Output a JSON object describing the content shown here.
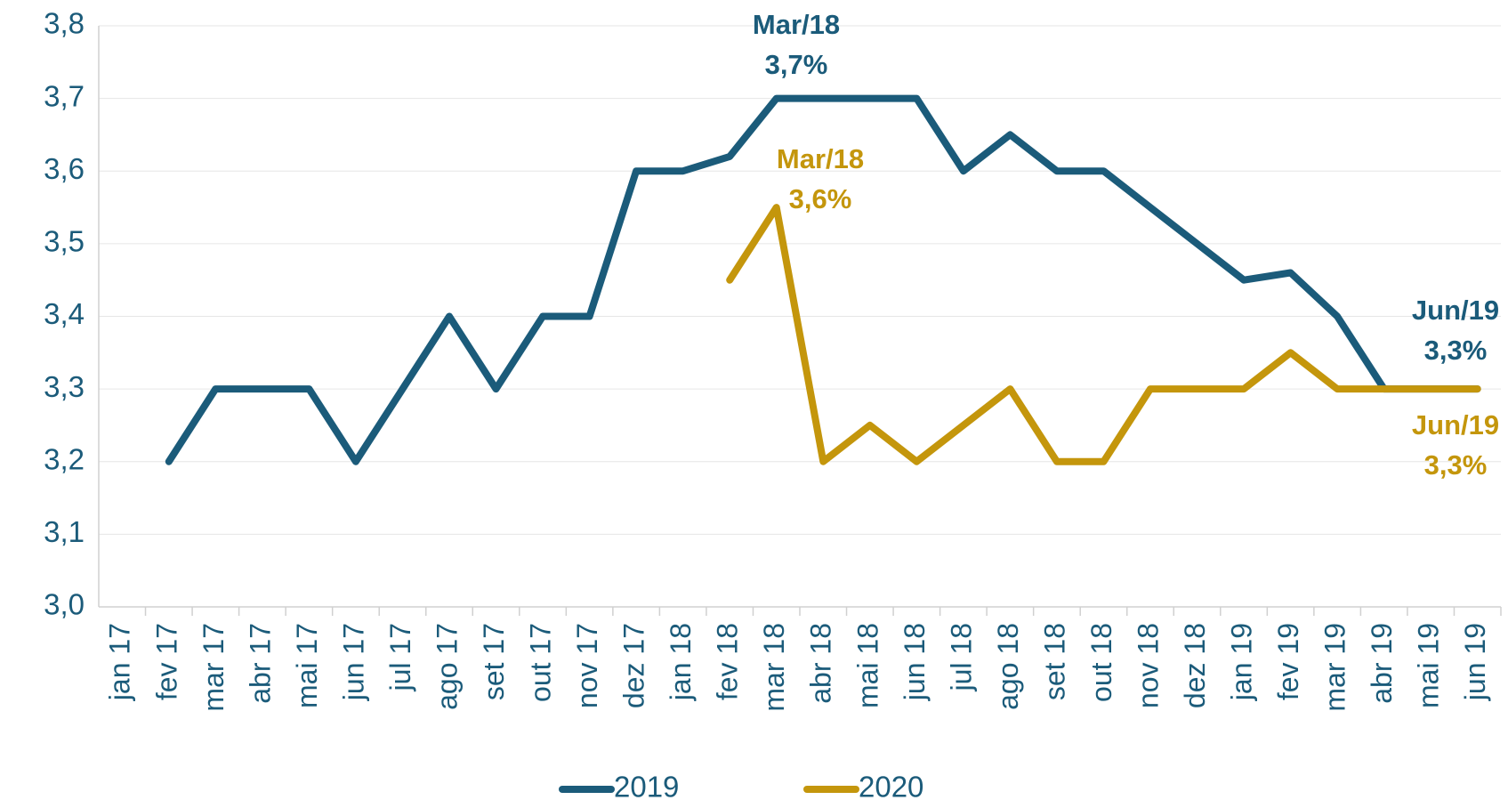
{
  "chart_data": {
    "type": "line",
    "categories": [
      "jan 17",
      "fev 17",
      "mar 17",
      "abr 17",
      "mai 17",
      "jun 17",
      "jul 17",
      "ago 17",
      "set 17",
      "out 17",
      "nov 17",
      "dez 17",
      "jan 18",
      "fev 18",
      "mar 18",
      "abr 18",
      "mai 18",
      "jun 18",
      "jul 18",
      "ago 18",
      "set 18",
      "out 18",
      "nov 18",
      "dez 18",
      "jan 19",
      "fev 19",
      "mar 19",
      "abr 19",
      "mai 19",
      "jun 19"
    ],
    "series": [
      {
        "name": "2019",
        "color": "#1b5b7a",
        "values": [
          null,
          3.2,
          3.3,
          3.3,
          3.3,
          3.2,
          3.3,
          3.4,
          3.3,
          3.4,
          3.4,
          3.6,
          3.6,
          3.62,
          3.7,
          3.7,
          3.7,
          3.7,
          3.6,
          3.65,
          3.6,
          3.6,
          3.55,
          3.5,
          3.45,
          3.46,
          3.4,
          3.3,
          3.3,
          3.3
        ]
      },
      {
        "name": "2020",
        "color": "#c4960c",
        "values": [
          null,
          null,
          null,
          null,
          null,
          null,
          null,
          null,
          null,
          null,
          null,
          null,
          null,
          3.45,
          3.55,
          3.2,
          3.25,
          3.2,
          3.25,
          3.3,
          3.2,
          3.2,
          3.3,
          3.3,
          3.3,
          3.35,
          3.3,
          3.3,
          3.3,
          3.3
        ]
      }
    ],
    "ylim": [
      3.0,
      3.8
    ],
    "yticks": [
      {
        "value": 3.0,
        "label": "3,0"
      },
      {
        "value": 3.1,
        "label": "3,1"
      },
      {
        "value": 3.2,
        "label": "3,2"
      },
      {
        "value": 3.3,
        "label": "3,3"
      },
      {
        "value": 3.4,
        "label": "3,4"
      },
      {
        "value": 3.5,
        "label": "3,5"
      },
      {
        "value": 3.6,
        "label": "3,6"
      },
      {
        "value": 3.7,
        "label": "3,7"
      },
      {
        "value": 3.8,
        "label": "3,8"
      }
    ],
    "grid": true,
    "legend": "bottom",
    "annotations": [
      {
        "lines": [
          "Mar/18",
          "3,7%"
        ],
        "color": "#1b5b7a"
      },
      {
        "lines": [
          "Mar/18",
          "3,6%"
        ],
        "color": "#c4960c"
      },
      {
        "lines": [
          "Jun/19",
          "3,3%"
        ],
        "color": "#1b5b7a"
      },
      {
        "lines": [
          "Jun/19",
          "3,3%"
        ],
        "color": "#c4960c"
      }
    ]
  }
}
